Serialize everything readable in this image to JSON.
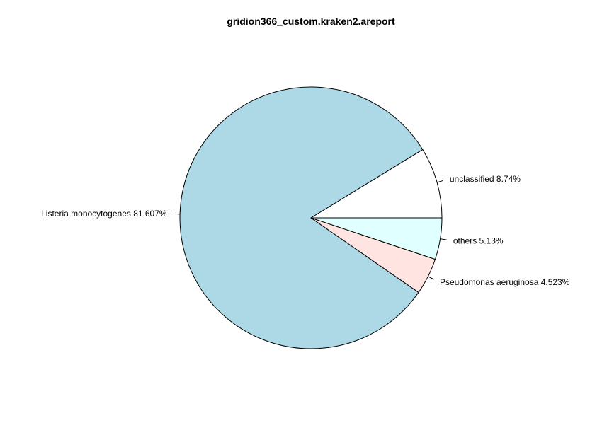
{
  "chart_data": {
    "type": "pie",
    "title": "gridion366_custom.kraken2.areport",
    "start_angle_deg": 0,
    "direction": "counterclockwise",
    "slices": [
      {
        "label": "unclassified 8.74%",
        "value": 8.74,
        "color": "#ffffff"
      },
      {
        "label": "Listeria monocytogenes 81.607%",
        "value": 81.607,
        "color": "#add8e6"
      },
      {
        "label": "Pseudomonas aeruginosa 4.523%",
        "value": 4.523,
        "color": "#ffe4e1"
      },
      {
        "label": "others 5.13%",
        "value": 5.13,
        "color": "#e0ffff"
      }
    ]
  }
}
